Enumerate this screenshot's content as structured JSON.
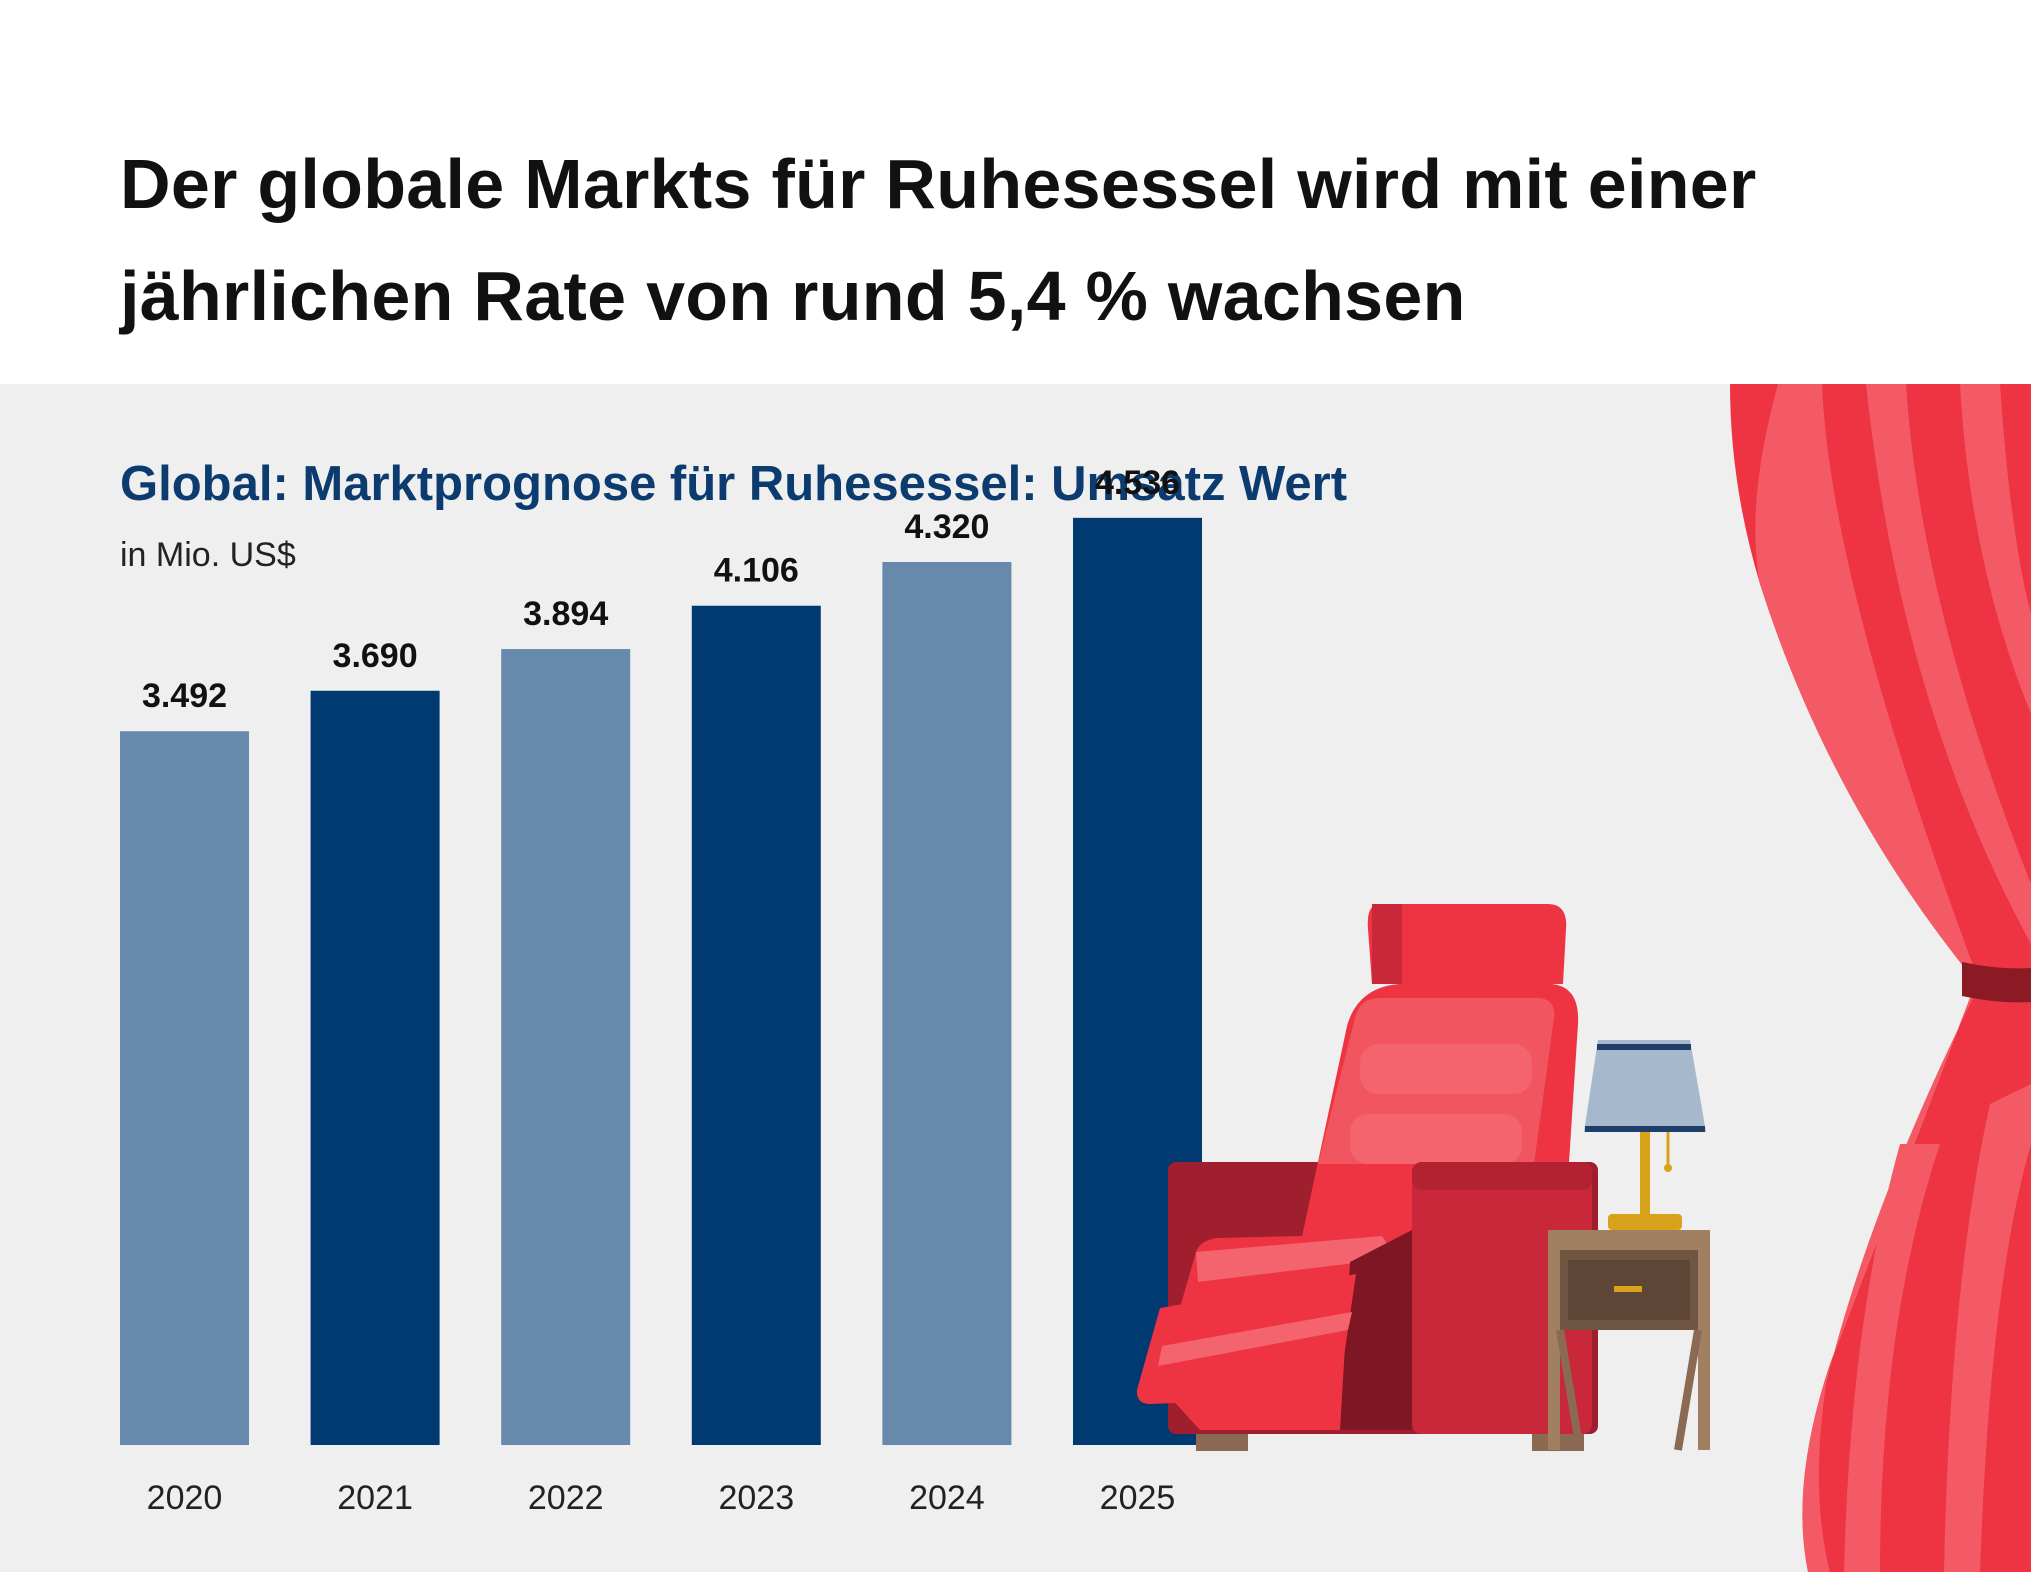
{
  "headline": "Der globale Markts für Ruhesessel wird mit einer jährlichen Rate von rund 5,4 % wachsen",
  "colors": {
    "bar_light": "#6789ac",
    "bar_dark": "#003a70",
    "panel_bg": "#efefef",
    "accent_red": "#ee3442"
  },
  "icons": [
    "recliner-chair-icon",
    "table-lamp-icon",
    "side-table-icon",
    "curtain-icon"
  ],
  "chart_data": {
    "type": "bar",
    "title": "Global: Marktprognose für Ruhesessel: Umsatz Wert",
    "unit": "in Mio. US$",
    "categories": [
      "2020",
      "2021",
      "2022",
      "2023",
      "2024",
      "2025"
    ],
    "values": [
      3492,
      3690,
      3894,
      4106,
      4320,
      4536
    ],
    "value_labels": [
      "3.492",
      "3.690",
      "3.894",
      "4.106",
      "4.320",
      "4.536"
    ],
    "ylim": [
      0,
      5000
    ],
    "grid": false,
    "bar_colors": [
      "#6789ac",
      "#003a70",
      "#6789ac",
      "#003a70",
      "#6789ac",
      "#003a70"
    ]
  }
}
